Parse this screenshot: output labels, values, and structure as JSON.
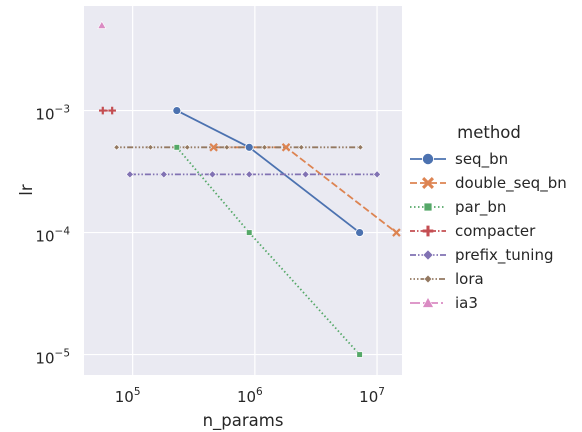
{
  "chart_data": {
    "type": "line",
    "xlabel": "n_params",
    "ylabel": "lr",
    "xscale": "log",
    "yscale": "log",
    "xlim": [
      40000,
      16000000
    ],
    "ylim": [
      6.8e-06,
      0.0072
    ],
    "grid": true,
    "background": "#eaeaf2",
    "x_ticks": [
      {
        "value": 100000,
        "base": "10",
        "exp": "5"
      },
      {
        "value": 1000000,
        "base": "10",
        "exp": "6"
      },
      {
        "value": 10000000,
        "base": "10",
        "exp": "7"
      }
    ],
    "y_ticks": [
      {
        "value": 1e-05,
        "base": "10",
        "exp": "−5"
      },
      {
        "value": 0.0001,
        "base": "10",
        "exp": "−4"
      },
      {
        "value": 0.001,
        "base": "10",
        "exp": "−3"
      }
    ],
    "legend_title": "method",
    "legend_position": "right",
    "series": [
      {
        "name": "seq_bn",
        "color": "#4c72b0",
        "dash": "",
        "marker": "circle",
        "points": [
          [
            230000,
            0.001
          ],
          [
            900000,
            0.0005
          ],
          [
            7200000,
            0.0001
          ]
        ]
      },
      {
        "name": "double_seq_bn",
        "color": "#dd8452",
        "dash": "7,3",
        "marker": "x",
        "points": [
          [
            460000,
            0.0005
          ],
          [
            1800000,
            0.0005
          ],
          [
            14400000,
            0.0001
          ]
        ]
      },
      {
        "name": "par_bn",
        "color": "#55a868",
        "dash": "1.5,2.5",
        "marker": "square",
        "points": [
          [
            230000,
            0.0005
          ],
          [
            900000,
            0.0001
          ],
          [
            7200000,
            1e-05
          ]
        ]
      },
      {
        "name": "compacter",
        "color": "#c44e52",
        "dash": "5,2,1.5,2",
        "marker": "plus",
        "points": [
          [
            57000,
            0.001
          ],
          [
            68000,
            0.001
          ]
        ]
      },
      {
        "name": "prefix_tuning",
        "color": "#8172b3",
        "dash": "6,2,1.5,2,1.5,2",
        "marker": "diamond",
        "points": [
          [
            95000,
            0.0003
          ],
          [
            180000,
            0.0003
          ],
          [
            450000,
            0.0003
          ],
          [
            900000,
            0.0003
          ],
          [
            2600000,
            0.0003
          ],
          [
            10000000,
            0.0003
          ]
        ]
      },
      {
        "name": "lora",
        "color": "#937860",
        "dash": "1.5,2,1.5,2,1.5,2,6,2",
        "marker": "smalldiamond",
        "points": [
          [
            74000,
            0.0005
          ],
          [
            140000,
            0.0005
          ],
          [
            280000,
            0.0005
          ],
          [
            590000,
            0.0005
          ],
          [
            1200000,
            0.0005
          ],
          [
            2400000,
            0.0005
          ],
          [
            7300000,
            0.0005
          ]
        ]
      },
      {
        "name": "ia3",
        "color": "#da8bc3",
        "dash": "10,3,2,3",
        "marker": "triangle",
        "points": [
          [
            56000,
            0.005
          ]
        ]
      }
    ]
  }
}
